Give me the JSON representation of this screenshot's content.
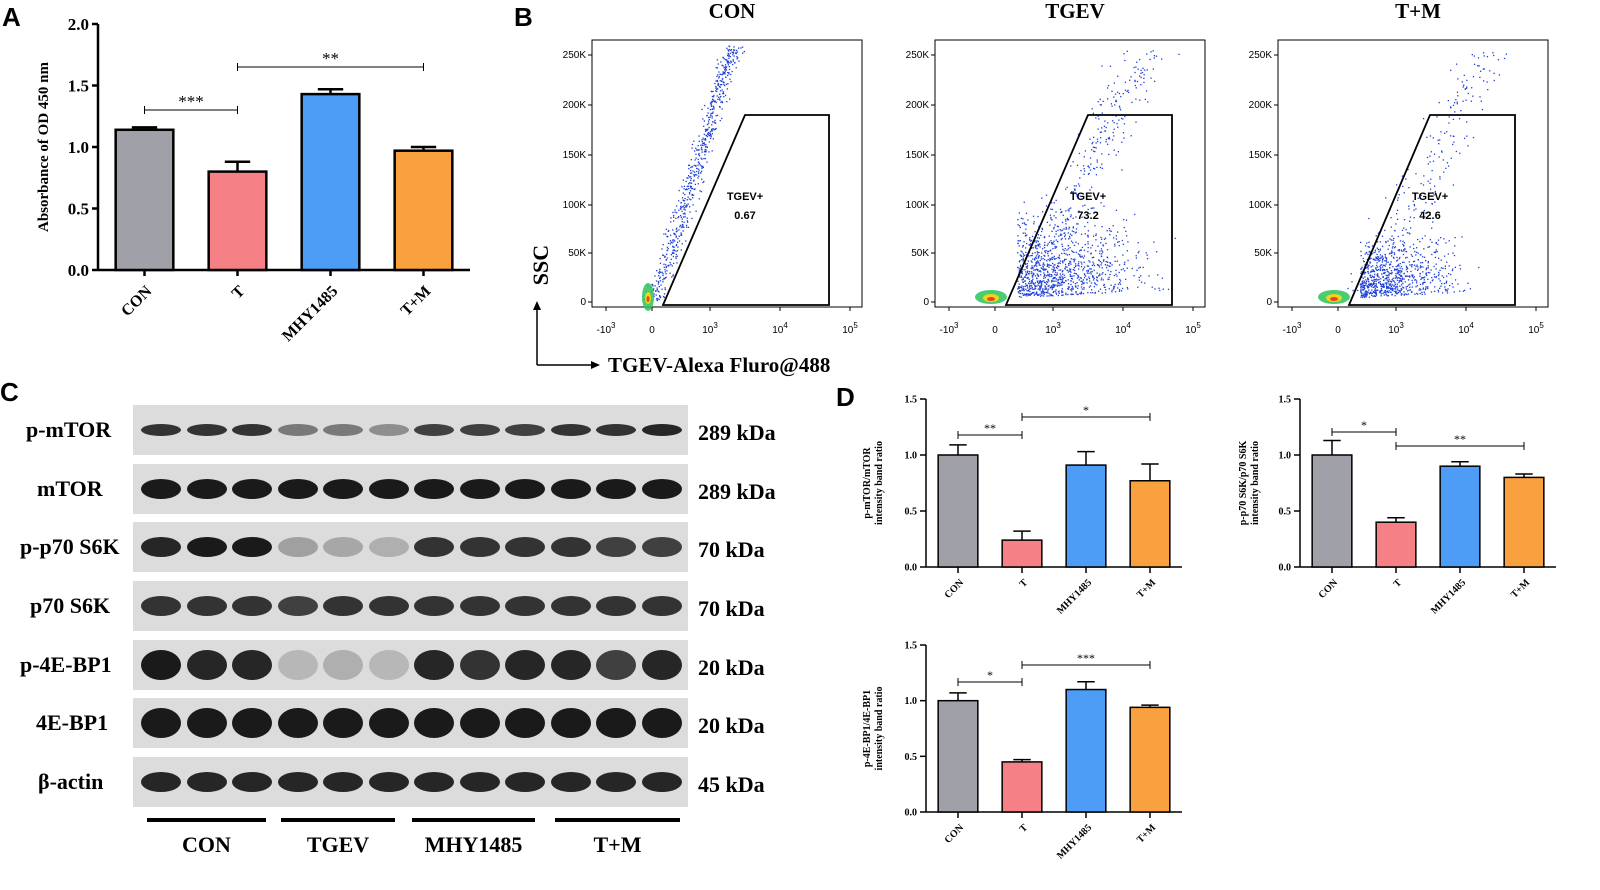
{
  "panel_labels": {
    "a": "A",
    "b": "B",
    "c": "C",
    "d": "D"
  },
  "colors": {
    "con": "#a0a0a8",
    "t": "#f58085",
    "mhy": "#4d9cf5",
    "tm": "#f9a03f",
    "gate": "#000000",
    "dots": "#1f3fd6"
  },
  "chart_data": [
    {
      "id": "A",
      "type": "bar",
      "title": "",
      "ylabel": "Absorbance of OD 450 nm",
      "xlabel": "",
      "categories": [
        "CON",
        "T",
        "MHY1485",
        "T+M"
      ],
      "values": [
        1.14,
        0.8,
        1.43,
        0.97
      ],
      "errors": [
        0.02,
        0.08,
        0.04,
        0.03
      ],
      "ylim": [
        0,
        2.0
      ],
      "yticks": [
        "0.0",
        "0.5",
        "1.0",
        "1.5",
        "2.0"
      ],
      "significance": [
        {
          "from": "CON",
          "to": "T",
          "label": "***"
        },
        {
          "from": "T",
          "to": "T+M",
          "label": "**"
        }
      ]
    },
    {
      "id": "D1",
      "type": "bar",
      "ylabel": "p-mTOR/mTOR intensity band ratio",
      "categories": [
        "CON",
        "T",
        "MHY1485",
        "T+M"
      ],
      "values": [
        1.0,
        0.24,
        0.91,
        0.77
      ],
      "errors": [
        0.09,
        0.08,
        0.12,
        0.15
      ],
      "ylim": [
        0,
        1.5
      ],
      "yticks": [
        "0.0",
        "0.5",
        "1.0",
        "1.5"
      ],
      "significance": [
        {
          "from": "CON",
          "to": "T",
          "label": "**"
        },
        {
          "from": "T",
          "to": "T+M",
          "label": "*"
        }
      ]
    },
    {
      "id": "D2",
      "type": "bar",
      "ylabel": "p-p70 S6K/p70 S6K intensity band ratio",
      "categories": [
        "CON",
        "T",
        "MHY1485",
        "T+M"
      ],
      "values": [
        1.0,
        0.4,
        0.9,
        0.8
      ],
      "errors": [
        0.13,
        0.04,
        0.04,
        0.03
      ],
      "ylim": [
        0,
        1.5
      ],
      "yticks": [
        "0.0",
        "0.5",
        "1.0",
        "1.5"
      ],
      "significance": [
        {
          "from": "CON",
          "to": "T",
          "label": "*"
        },
        {
          "from": "T",
          "to": "T+M",
          "label": "**"
        }
      ]
    },
    {
      "id": "D3",
      "type": "bar",
      "ylabel": "p-4E-BP1/4E-BP1 intensity band ratio",
      "categories": [
        "CON",
        "T",
        "MHY1485",
        "T+M"
      ],
      "values": [
        1.0,
        0.45,
        1.1,
        0.94
      ],
      "errors": [
        0.07,
        0.02,
        0.07,
        0.02
      ],
      "ylim": [
        0,
        1.5
      ],
      "yticks": [
        "0.0",
        "0.5",
        "1.0",
        "1.5"
      ],
      "significance": [
        {
          "from": "CON",
          "to": "T",
          "label": "*"
        },
        {
          "from": "T",
          "to": "T+M",
          "label": "***"
        }
      ]
    },
    {
      "id": "B",
      "type": "scatter",
      "axis_x_label": "TGEV-Alexa Fluro@488",
      "axis_y_label": "SSC",
      "yticks": [
        "0",
        "50K",
        "100K",
        "150K",
        "200K",
        "250K"
      ],
      "xticks": [
        "-10",
        "0",
        "10",
        "10",
        "10"
      ],
      "xtick_exp": [
        "3",
        "",
        "3",
        "4",
        "5"
      ],
      "plots": [
        {
          "title": "CON",
          "gate_name": "TGEV+",
          "gate_value": "0.67"
        },
        {
          "title": "TGEV",
          "gate_name": "TGEV+",
          "gate_value": "73.2"
        },
        {
          "title": "T+M",
          "gate_name": "TGEV+",
          "gate_value": "42.6"
        }
      ]
    }
  ],
  "western_blot": {
    "rows": [
      {
        "protein": "p-mTOR",
        "size": "289 kDa",
        "intensity": [
          0.85,
          0.85,
          0.85,
          0.55,
          0.55,
          0.45,
          0.8,
          0.8,
          0.8,
          0.85,
          0.85,
          0.9
        ]
      },
      {
        "protein": "mTOR",
        "size": "289 kDa",
        "intensity": [
          0.95,
          0.95,
          0.95,
          0.95,
          0.95,
          0.95,
          0.95,
          0.95,
          0.95,
          0.95,
          0.95,
          0.95
        ]
      },
      {
        "protein": "p-p70 S6K",
        "size": "70 kDa",
        "intensity": [
          0.9,
          0.95,
          0.95,
          0.35,
          0.3,
          0.25,
          0.85,
          0.85,
          0.85,
          0.85,
          0.8,
          0.8
        ]
      },
      {
        "protein": "p70 S6K",
        "size": "70 kDa",
        "intensity": [
          0.85,
          0.85,
          0.85,
          0.8,
          0.85,
          0.85,
          0.85,
          0.85,
          0.85,
          0.85,
          0.85,
          0.85
        ]
      },
      {
        "protein": "p-4E-BP1",
        "size": "20 kDa",
        "intensity": [
          0.95,
          0.9,
          0.9,
          0.2,
          0.25,
          0.2,
          0.9,
          0.85,
          0.9,
          0.9,
          0.8,
          0.9
        ]
      },
      {
        "protein": "4E-BP1",
        "size": "20 kDa",
        "intensity": [
          0.95,
          0.95,
          0.95,
          0.95,
          0.95,
          0.95,
          0.95,
          0.95,
          0.95,
          0.95,
          0.95,
          0.95
        ]
      },
      {
        "protein": "β-actin",
        "size": "45 kDa",
        "intensity": [
          0.9,
          0.9,
          0.9,
          0.9,
          0.9,
          0.9,
          0.9,
          0.9,
          0.9,
          0.9,
          0.9,
          0.9
        ]
      }
    ],
    "groups": [
      "CON",
      "TGEV",
      "MHY1485",
      "T+M"
    ]
  }
}
